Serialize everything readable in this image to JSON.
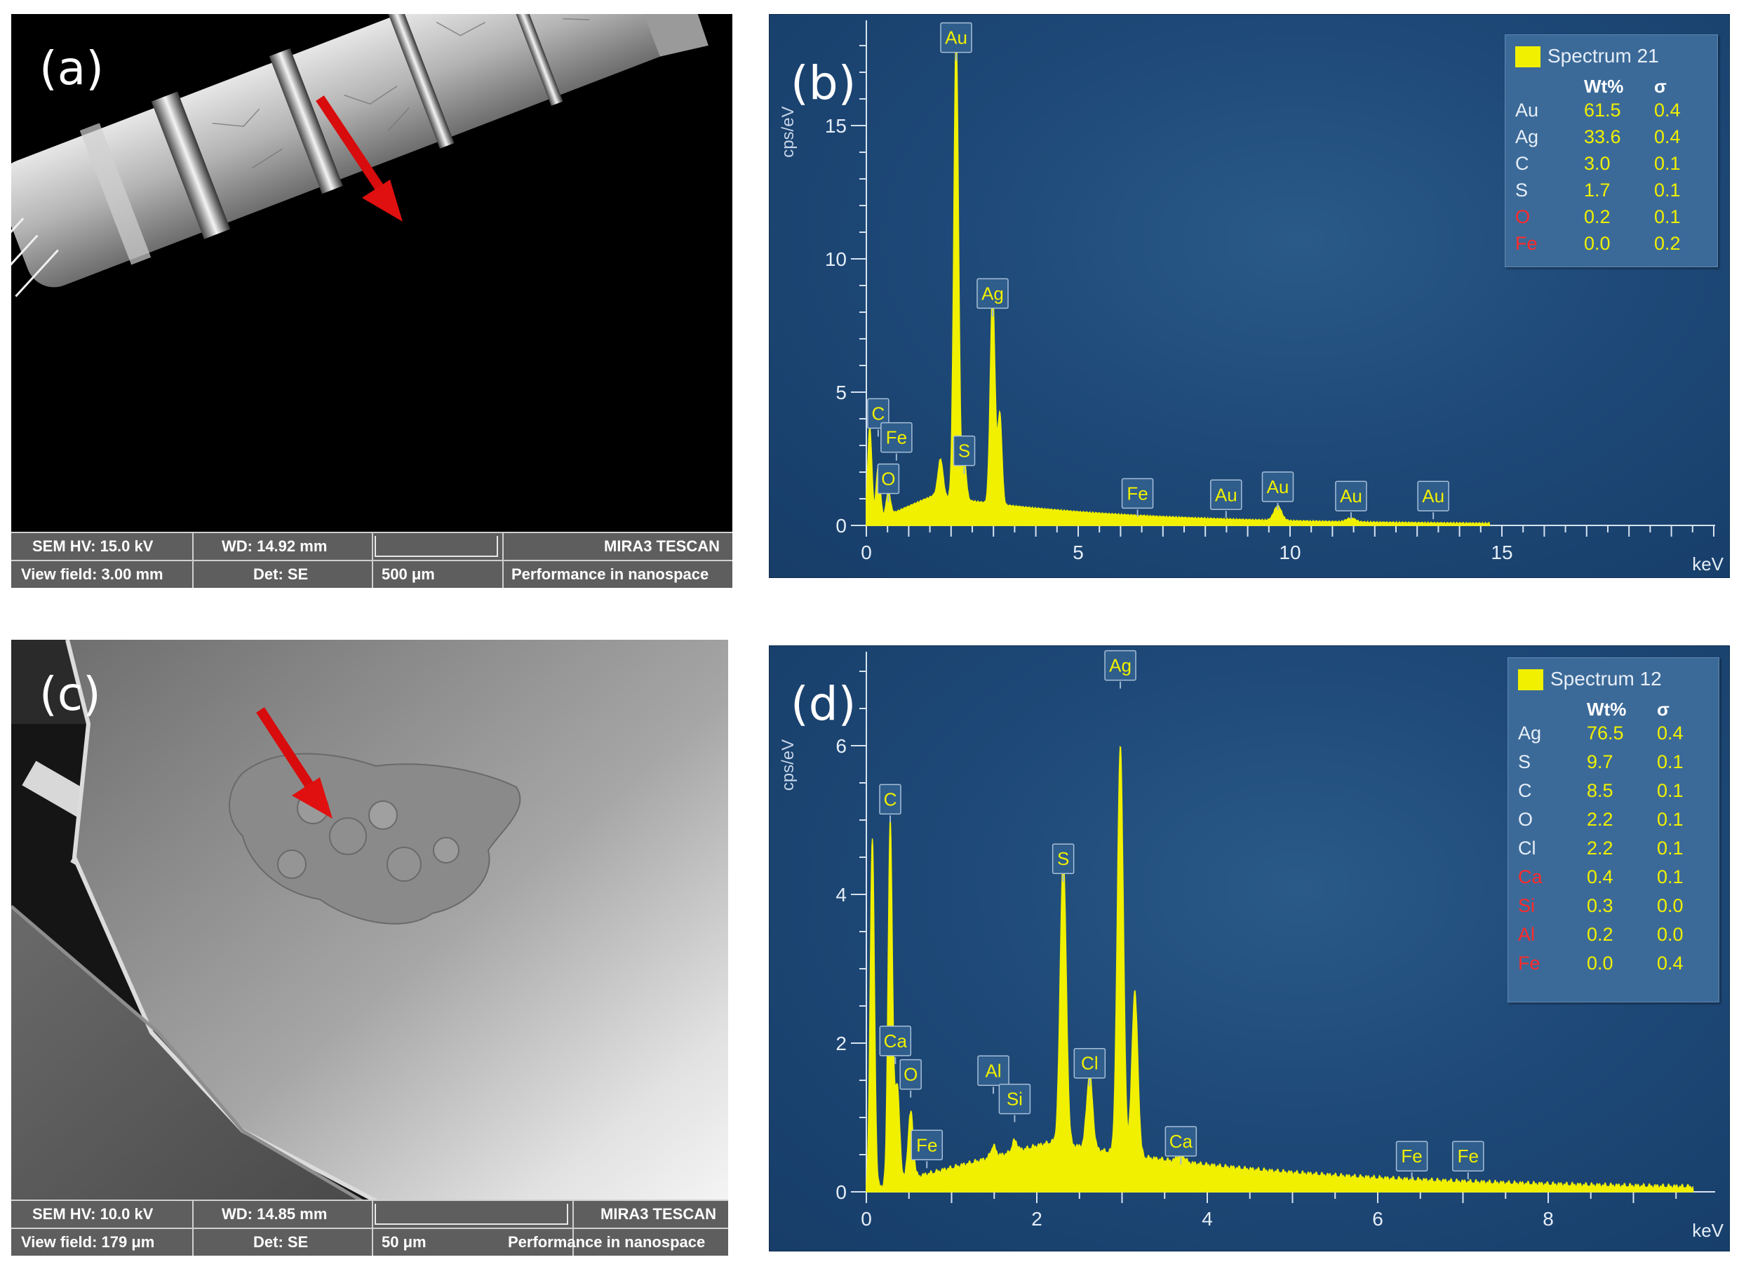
{
  "panels": {
    "a": {
      "label": "(a)",
      "info": {
        "hv": "SEM HV: 15.0 kV",
        "wd": "WD: 14.92 mm",
        "brand": "MIRA3 TESCAN",
        "view_field": "View field: 3.00 mm",
        "det": "Det: SE",
        "scale": "500 μm",
        "tagline": "Performance in nanospace"
      }
    },
    "b": {
      "label": "(b)"
    },
    "c": {
      "label": "(c)",
      "info": {
        "hv": "SEM HV: 10.0 kV",
        "wd": "WD: 14.85 mm",
        "brand": "MIRA3 TESCAN",
        "view_field": "View field: 179 μm",
        "det": "Det: SE",
        "scale": "50 μm",
        "tagline": "Performance in nanospace"
      }
    },
    "d": {
      "label": "(d)"
    }
  },
  "colors": {
    "spectrum": "#f0f000",
    "background": "#1e4978",
    "minor_element": "#ff2a2a",
    "arrow": "#e01010"
  },
  "chart_data": [
    {
      "type": "area",
      "panel": "b",
      "ylabel": "cps/eV",
      "xlabel": "keV",
      "x_ticks": [
        "0",
        "5",
        "10",
        "15"
      ],
      "y_ticks": [
        "0",
        "5",
        "10",
        "15"
      ],
      "xlim": [
        0,
        20
      ],
      "ylim": [
        0,
        18
      ],
      "peaks": [
        {
          "e": 0.08,
          "h": 3.6,
          "w": 0.05
        },
        {
          "e": 0.28,
          "h": 2.0,
          "w": 0.05
        },
        {
          "e": 0.52,
          "h": 0.9,
          "w": 0.05
        },
        {
          "e": 1.75,
          "h": 1.4,
          "w": 0.06
        },
        {
          "e": 2.12,
          "h": 17.6,
          "w": 0.055
        },
        {
          "e": 2.31,
          "h": 1.5,
          "w": 0.05
        },
        {
          "e": 2.98,
          "h": 8.0,
          "w": 0.055
        },
        {
          "e": 3.15,
          "h": 3.4,
          "w": 0.05
        },
        {
          "e": 9.71,
          "h": 0.55,
          "w": 0.09
        },
        {
          "e": 11.44,
          "h": 0.15,
          "w": 0.1
        }
      ],
      "continuum": {
        "amplitude": 1.1,
        "peak_kev": 1.6,
        "cutoff_kev": 14.7
      },
      "peak_labels": [
        {
          "text": "Au",
          "e": 2.12,
          "h": 17.8
        },
        {
          "text": "Ag",
          "e": 2.98,
          "h": 8.2
        },
        {
          "text": "C",
          "e": 0.28,
          "h": 3.7
        },
        {
          "text": "Fe",
          "e": 0.71,
          "h": 2.8
        },
        {
          "text": "S",
          "e": 2.31,
          "h": 2.3
        },
        {
          "text": "O",
          "e": 0.52,
          "h": 1.25
        },
        {
          "text": "Fe",
          "e": 6.4,
          "h": 0.7
        },
        {
          "text": "Au",
          "e": 8.49,
          "h": 0.65
        },
        {
          "text": "Au",
          "e": 9.71,
          "h": 0.95
        },
        {
          "text": "Au",
          "e": 11.44,
          "h": 0.6
        },
        {
          "text": "Au",
          "e": 13.38,
          "h": 0.6
        }
      ],
      "legend": {
        "title": "Spectrum 21",
        "col_wt": "Wt%",
        "col_sigma": "σ",
        "rows": [
          {
            "el": "Au",
            "wt": "61.5",
            "sigma": "0.4",
            "minor": false
          },
          {
            "el": "Ag",
            "wt": "33.6",
            "sigma": "0.4",
            "minor": false
          },
          {
            "el": "C",
            "wt": "3.0",
            "sigma": "0.1",
            "minor": false
          },
          {
            "el": "S",
            "wt": "1.7",
            "sigma": "0.1",
            "minor": false
          },
          {
            "el": "O",
            "wt": "0.2",
            "sigma": "0.1",
            "minor": true
          },
          {
            "el": "Fe",
            "wt": "0.0",
            "sigma": "0.2",
            "minor": true
          }
        ]
      }
    },
    {
      "type": "area",
      "panel": "d",
      "ylabel": "cps/eV",
      "xlabel": "keV",
      "x_ticks": [
        "0",
        "2",
        "4",
        "6",
        "8"
      ],
      "y_ticks": [
        "0",
        "2",
        "4",
        "6"
      ],
      "xlim": [
        0,
        9.8
      ],
      "ylim": [
        0,
        7.0
      ],
      "peaks": [
        {
          "e": 0.07,
          "h": 4.7,
          "w": 0.025
        },
        {
          "e": 0.28,
          "h": 4.85,
          "w": 0.025
        },
        {
          "e": 0.36,
          "h": 1.3,
          "w": 0.03
        },
        {
          "e": 0.52,
          "h": 0.9,
          "w": 0.03
        },
        {
          "e": 1.49,
          "h": 0.15,
          "w": 0.03
        },
        {
          "e": 1.74,
          "h": 0.15,
          "w": 0.03
        },
        {
          "e": 2.31,
          "h": 3.9,
          "w": 0.035
        },
        {
          "e": 2.62,
          "h": 1.0,
          "w": 0.035
        },
        {
          "e": 2.98,
          "h": 5.5,
          "w": 0.035
        },
        {
          "e": 3.15,
          "h": 2.2,
          "w": 0.035
        },
        {
          "e": 3.69,
          "h": 0.12,
          "w": 0.04
        }
      ],
      "continuum": {
        "amplitude": 0.65,
        "peak_kev": 2.2,
        "cutoff_kev": 9.7
      },
      "peak_labels": [
        {
          "text": "Ag",
          "e": 2.98,
          "h": 6.9
        },
        {
          "text": "C",
          "e": 0.28,
          "h": 5.1
        },
        {
          "text": "S",
          "e": 2.31,
          "h": 4.3
        },
        {
          "text": "Ca",
          "e": 0.34,
          "h": 1.85
        },
        {
          "text": "O",
          "e": 0.52,
          "h": 1.4
        },
        {
          "text": "Al",
          "e": 1.49,
          "h": 1.45
        },
        {
          "text": "Cl",
          "e": 2.62,
          "h": 1.55
        },
        {
          "text": "Si",
          "e": 1.74,
          "h": 1.07
        },
        {
          "text": "Fe",
          "e": 0.71,
          "h": 0.45
        },
        {
          "text": "Ca",
          "e": 3.69,
          "h": 0.5
        },
        {
          "text": "Fe",
          "e": 6.4,
          "h": 0.3
        },
        {
          "text": "Fe",
          "e": 7.06,
          "h": 0.3
        }
      ],
      "legend": {
        "title": "Spectrum 12",
        "col_wt": "Wt%",
        "col_sigma": "σ",
        "rows": [
          {
            "el": "Ag",
            "wt": "76.5",
            "sigma": "0.4",
            "minor": false
          },
          {
            "el": "S",
            "wt": "9.7",
            "sigma": "0.1",
            "minor": false
          },
          {
            "el": "C",
            "wt": "8.5",
            "sigma": "0.1",
            "minor": false
          },
          {
            "el": "O",
            "wt": "2.2",
            "sigma": "0.1",
            "minor": false
          },
          {
            "el": "Cl",
            "wt": "2.2",
            "sigma": "0.1",
            "minor": false
          },
          {
            "el": "Ca",
            "wt": "0.4",
            "sigma": "0.1",
            "minor": true
          },
          {
            "el": "Si",
            "wt": "0.3",
            "sigma": "0.0",
            "minor": true
          },
          {
            "el": "Al",
            "wt": "0.2",
            "sigma": "0.0",
            "minor": true
          },
          {
            "el": "Fe",
            "wt": "0.0",
            "sigma": "0.4",
            "minor": true
          }
        ]
      }
    }
  ]
}
